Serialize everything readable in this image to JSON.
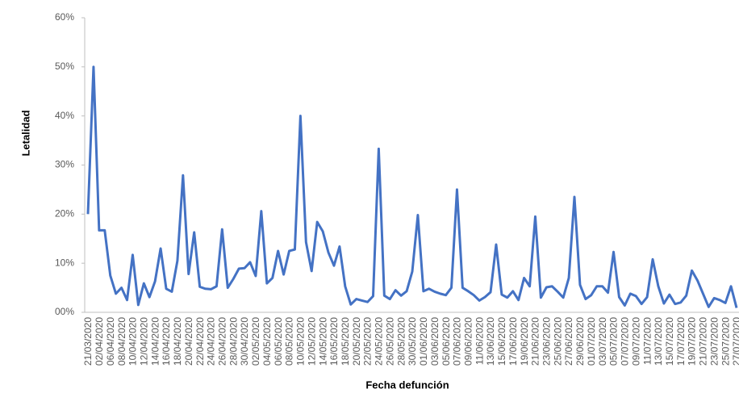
{
  "chart_data": {
    "type": "line",
    "x_label": "Fecha defunción",
    "y_label": "Letalidad",
    "categories": [
      "21/03/2020",
      null,
      "02/04/2020",
      null,
      "06/04/2020",
      null,
      "08/04/2020",
      null,
      "10/04/2020",
      null,
      "12/04/2020",
      null,
      "14/04/2020",
      null,
      "16/04/2020",
      null,
      "18/04/2020",
      null,
      "20/04/2020",
      null,
      "22/04/2020",
      null,
      "24/04/2020",
      null,
      "26/04/2020",
      null,
      "28/04/2020",
      null,
      "30/04/2020",
      null,
      "02/05/2020",
      null,
      "04/05/2020",
      null,
      "06/05/2020",
      null,
      "08/05/2020",
      null,
      "10/05/2020",
      null,
      "12/05/2020",
      null,
      "14/05/2020",
      null,
      "16/05/2020",
      null,
      "18/05/2020",
      null,
      "20/05/2020",
      null,
      "22/05/2020",
      null,
      "24/05/2020",
      null,
      "26/05/2020",
      null,
      "28/05/2020",
      null,
      "30/05/2020",
      null,
      "01/06/2020",
      null,
      "03/06/2020",
      null,
      "05/06/2020",
      null,
      "07/06/2020",
      null,
      "09/06/2020",
      null,
      "11/06/2020",
      null,
      "13/06/2020",
      null,
      "15/06/2020",
      null,
      "17/06/2020",
      null,
      "19/06/2020",
      null,
      "21/06/2020",
      null,
      "23/06/2020",
      null,
      "25/06/2020",
      null,
      "27/06/2020",
      null,
      "29/06/2020",
      null,
      "01/07/2020",
      null,
      "03/07/2020",
      null,
      "05/07/2020",
      null,
      "07/07/2020",
      null,
      "09/07/2020",
      null,
      "11/07/2020",
      null,
      "13/07/2020",
      null,
      "15/07/2020",
      null,
      "17/07/2020",
      null,
      "19/07/2020",
      null,
      "21/07/2020",
      null,
      "23/07/2020",
      null,
      "25/07/2020",
      null,
      "27/07/2020"
    ],
    "series": [
      {
        "name": "Letalidad",
        "color": "#4472c4",
        "values": [
          20,
          50,
          16.7,
          16.7,
          7.5,
          3.8,
          5,
          2.5,
          11.7,
          1.5,
          5.9,
          3.1,
          6.3,
          13,
          4.8,
          4.2,
          10.5,
          27.9,
          7.8,
          16.3,
          5.2,
          4.8,
          4.7,
          5.3,
          16.9,
          5,
          6.8,
          8.9,
          9,
          10.2,
          7.4,
          20.6,
          5.9,
          7,
          12.5,
          7.7,
          12.5,
          12.8,
          40,
          14.3,
          8.4,
          18.4,
          16.5,
          12.2,
          9.5,
          13.4,
          5.3,
          1.6,
          2.7,
          2.4,
          2.1,
          3.3,
          33.3,
          3.4,
          2.7,
          4.5,
          3.4,
          4.3,
          8.3,
          19.8,
          4.3,
          4.8,
          4.2,
          3.8,
          3.5,
          5,
          25,
          5,
          4.3,
          3.5,
          2.4,
          3.1,
          4.1,
          13.8,
          3.6,
          3,
          4.3,
          2.5,
          7,
          5.3,
          19.5,
          3,
          5.1,
          5.3,
          4.2,
          3,
          7,
          23.5,
          5.6,
          2.7,
          3.5,
          5.3,
          5.3,
          4,
          12.3,
          3.1,
          1.4,
          3.8,
          3.3,
          1.7,
          3.1,
          10.8,
          5.3,
          1.8,
          3.6,
          1.7,
          2,
          3.4,
          8.5,
          6.5,
          3.8,
          1.1,
          2.9,
          2.5,
          1.9,
          5.3,
          0.9
        ]
      }
    ],
    "ylim": [
      0,
      60
    ],
    "yticks": [
      {
        "value": 0,
        "label": "00%"
      },
      {
        "value": 10,
        "label": "10%"
      },
      {
        "value": 20,
        "label": "20%"
      },
      {
        "value": 30,
        "label": "30%"
      },
      {
        "value": 40,
        "label": "40%"
      },
      {
        "value": 50,
        "label": "50%"
      },
      {
        "value": 60,
        "label": "60%"
      }
    ]
  }
}
